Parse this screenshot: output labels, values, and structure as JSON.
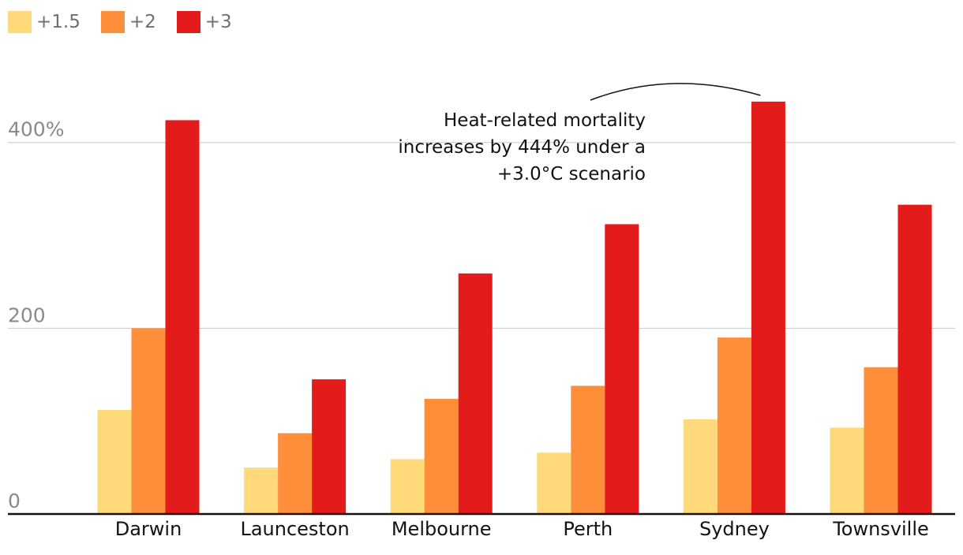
{
  "legend": [
    {
      "label": "+1.5",
      "color": "#ffd97a"
    },
    {
      "label": "+2",
      "color": "#ff8e3b"
    },
    {
      "label": "+3",
      "color": "#e31b1b"
    }
  ],
  "chart_data": {
    "type": "bar",
    "title": "",
    "xlabel": "",
    "ylabel": "",
    "ylim": [
      0,
      400
    ],
    "ymax_view": 477,
    "y_ticks": [
      {
        "value": 0,
        "label": "0"
      },
      {
        "value": 200,
        "label": "200"
      },
      {
        "value": 400,
        "label": "400%"
      }
    ],
    "categories": [
      "Darwin",
      "Launceston",
      "Melbourne",
      "Perth",
      "Sydney",
      "Townsville"
    ],
    "series": [
      {
        "name": "+1.5",
        "color": "#ffd97a",
        "values": [
          112,
          50,
          59,
          66,
          102,
          93
        ]
      },
      {
        "name": "+2",
        "color": "#ff8e3b",
        "values": [
          200,
          87,
          124,
          138,
          190,
          158
        ]
      },
      {
        "name": "+3",
        "color": "#e31b1b",
        "values": [
          424,
          145,
          259,
          312,
          444,
          333
        ]
      }
    ],
    "grid": true,
    "legend_position": "top-left",
    "annotation": {
      "lines": [
        "Heat-related mortality",
        "increases by 444% under a",
        "+3.0°C scenario"
      ],
      "target_category": "Sydney"
    }
  }
}
